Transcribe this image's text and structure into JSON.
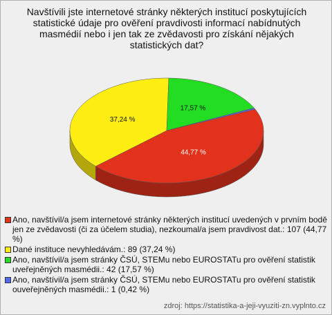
{
  "chart_data": {
    "type": "pie",
    "title": "Navštívili jste internetové stránky některých institucí poskytujících statistické údaje pro ověření pravdivosti informací nabídnutých masmédií nebo i jen tak ze zvědavosti pro získání nějakých statistických dat?",
    "categories": [
      "Ano, navštívil/a jsem internetové stránky některých institucí uvedených v prvním bodě jen ze zvědavosti (či za účelem studia), nezkoumal/a jsem pravdivost dat.: 107 (44,77 %)",
      "Dané instituce nevyhledávám.: 89 (37,24 %)",
      "Ano, navštívil/a jsem stránky ČSÚ, STEMu nebo EUROSTATu pro ověření statistik uveřejněných masmédii.: 42 (17,57 %)",
      "Ano, navštívil/a jsem stránky ČSÚ, STEMu nebo EUROSTATu pro ověření statistik ouveřejněných masmédii.: 1 (0,42 %)"
    ],
    "values": [
      44.77,
      37.24,
      17.57,
      0.42
    ],
    "value_labels": [
      "44,77 %",
      "37,24 %",
      "17,57 %",
      null
    ],
    "colors": [
      "#e2321c",
      "#ffee11",
      "#22dd22",
      "#5566ee"
    ],
    "source": "zdroj: https://statistika-a-jeji-vyuziti-zn.vyplnto.cz"
  }
}
